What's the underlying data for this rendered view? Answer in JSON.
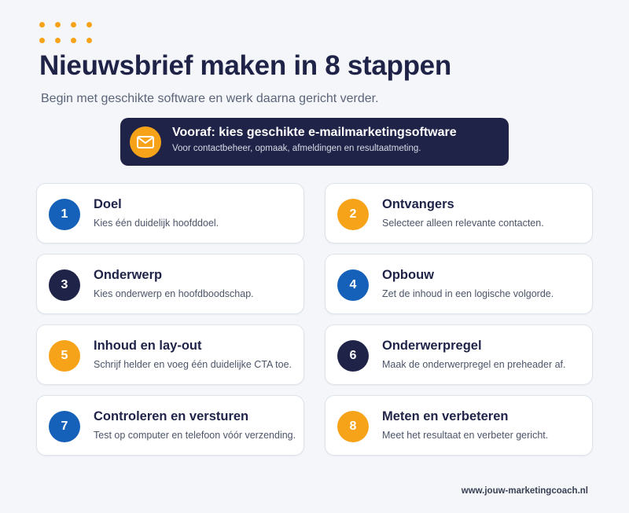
{
  "header": {
    "title": "Nieuwsbrief maken in 8 stappen",
    "subtitle": "Begin met geschikte software en werk daarna gericht verder."
  },
  "banner": {
    "icon": "envelope-icon",
    "title": "Vooraf: kies geschikte e-mailmarketingsoftware",
    "subtitle": "Voor contactbeheer, opmaak, afmeldingen en resultaatmeting."
  },
  "steps": [
    {
      "number": "1",
      "title": "Doel",
      "description": "Kies één duidelijk hoofddoel.",
      "color": "#1560b8"
    },
    {
      "number": "2",
      "title": "Ontvangers",
      "description": "Selecteer alleen relevante contacten.",
      "color": "#f6a31a"
    },
    {
      "number": "3",
      "title": "Onderwerp",
      "description": "Kies onderwerp en hoofdboodschap.",
      "color": "#1f2348"
    },
    {
      "number": "4",
      "title": "Opbouw",
      "description": "Zet de inhoud in een logische volgorde.",
      "color": "#1560b8"
    },
    {
      "number": "5",
      "title": "Inhoud en lay-out",
      "description": "Schrijf helder en voeg één duidelijke CTA toe.",
      "color": "#f6a31a"
    },
    {
      "number": "6",
      "title": "Onderwerpregel",
      "description": "Maak de onderwerpregel en preheader af.",
      "color": "#1f2348"
    },
    {
      "number": "7",
      "title": "Controleren en versturen",
      "description": "Test op computer en telefoon vóór verzending.",
      "color": "#1560b8"
    },
    {
      "number": "8",
      "title": "Meten en verbeteren",
      "description": "Meet het resultaat en verbeter gericht.",
      "color": "#f6a31a"
    }
  ],
  "footer": {
    "website": "www.jouw-marketingcoach.nl"
  },
  "colors": {
    "navy": "#1f2348",
    "blue": "#1560b8",
    "orange": "#f6a31a"
  }
}
